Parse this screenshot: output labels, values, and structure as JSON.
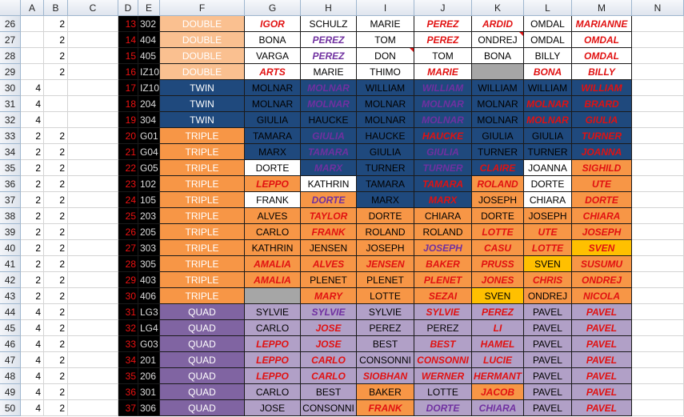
{
  "columns": [
    "A",
    "B",
    "C",
    "D",
    "E",
    "F",
    "G",
    "H",
    "I",
    "J",
    "K",
    "L",
    "M",
    "N"
  ],
  "colors": {
    "W": "#ffffff",
    "PD": "#fac090",
    "N": "#1f497d",
    "O": "#f79646",
    "P": "#8064a2",
    "LP": "#b1a0c7",
    "G": "#a6a6a6",
    "Y": "#ffc000",
    "BK": "#000000",
    "RED": "#ff0000",
    "PUR": "#7030a0",
    "BLK": "#000000",
    "WHT": "#ffffff",
    "OR": "#ffc000",
    "RD": "#e11111",
    "PP": "#7030a0"
  },
  "rows": [
    {
      "r": "26",
      "a": "",
      "b": "2",
      "d": "13",
      "e": "302",
      "f": "DOUBLE",
      "fc": "PD",
      "cells": [
        [
          "IGOR",
          "W",
          "RD",
          1
        ],
        [
          "SCHULZ",
          "W",
          "BK",
          0
        ],
        [
          "MARIE",
          "W",
          "BK",
          0
        ],
        [
          "PEREZ",
          "W",
          "RD",
          1
        ],
        [
          "ARDID",
          "W",
          "RD",
          1
        ],
        [
          "OMDAL",
          "W",
          "BK",
          0
        ],
        [
          "MARIANNE",
          "W",
          "RD",
          1
        ]
      ]
    },
    {
      "r": "27",
      "a": "",
      "b": "2",
      "d": "14",
      "e": "404",
      "f": "DOUBLE",
      "fc": "PD",
      "cells": [
        [
          "BONA",
          "W",
          "BK",
          0
        ],
        [
          "PEREZ",
          "W",
          "PP",
          1
        ],
        [
          "TOM",
          "W",
          "BK",
          0
        ],
        [
          "PEREZ",
          "W",
          "RD",
          1
        ],
        [
          "ONDREJ",
          "W",
          "BK",
          0,
          1
        ],
        [
          "OMDAL",
          "W",
          "BK",
          0
        ],
        [
          "OMDAL",
          "W",
          "RD",
          1
        ]
      ]
    },
    {
      "r": "28",
      "a": "",
      "b": "2",
      "d": "15",
      "e": "405",
      "f": "DOUBLE",
      "fc": "PD",
      "cells": [
        [
          "VARGA",
          "W",
          "BK",
          0
        ],
        [
          "PEREZ",
          "W",
          "PP",
          1
        ],
        [
          "DON",
          "W",
          "BK",
          0,
          1
        ],
        [
          "TOM",
          "W",
          "BK",
          0
        ],
        [
          "BONA",
          "W",
          "BK",
          0
        ],
        [
          "BILLY",
          "W",
          "BK",
          0
        ],
        [
          "OMDAL",
          "W",
          "RD",
          1
        ]
      ]
    },
    {
      "r": "29",
      "a": "",
      "b": "2",
      "d": "16",
      "e": "IZ10",
      "f": "DOUBLE",
      "fc": "PD",
      "cells": [
        [
          "ARTS",
          "W",
          "RD",
          1
        ],
        [
          "MARIE",
          "W",
          "BK",
          0
        ],
        [
          "THIMO",
          "W",
          "BK",
          0
        ],
        [
          "MARIE",
          "W",
          "RD",
          1
        ],
        [
          "",
          "G",
          "BK",
          0
        ],
        [
          "BONA",
          "W",
          "RD",
          1
        ],
        [
          "BILLY",
          "W",
          "RD",
          1
        ]
      ]
    },
    {
      "r": "30",
      "a": "4",
      "b": "",
      "d": "17",
      "e": "IZ10",
      "f": "TWIN",
      "fc": "N",
      "cells": [
        [
          "MOLNAR",
          "N",
          "BK",
          0
        ],
        [
          "MOLNAR",
          "N",
          "PP",
          1
        ],
        [
          "WILLIAM",
          "N",
          "BK",
          0
        ],
        [
          "WILLIAM",
          "N",
          "PP",
          1
        ],
        [
          "WILLIAM",
          "N",
          "BK",
          0
        ],
        [
          "WILLIAM",
          "N",
          "BK",
          0
        ],
        [
          "WILLIAM",
          "N",
          "RD",
          1
        ]
      ]
    },
    {
      "r": "31",
      "a": "4",
      "b": "",
      "d": "18",
      "e": "204",
      "f": "TWIN",
      "fc": "N",
      "cells": [
        [
          "MOLNAR",
          "N",
          "BK",
          0
        ],
        [
          "MOLNAR",
          "N",
          "PP",
          1
        ],
        [
          "MOLNAR",
          "N",
          "BK",
          0
        ],
        [
          "MOLNAR",
          "N",
          "PP",
          1
        ],
        [
          "MOLNAR",
          "N",
          "BK",
          0
        ],
        [
          "MOLNAR",
          "N",
          "RD",
          1
        ],
        [
          "BRARD",
          "N",
          "RD",
          1
        ]
      ]
    },
    {
      "r": "32",
      "a": "4",
      "b": "",
      "d": "19",
      "e": "304",
      "f": "TWIN",
      "fc": "N",
      "cells": [
        [
          "GIULIA",
          "N",
          "BK",
          0
        ],
        [
          "HAUCKE",
          "N",
          "BK",
          0
        ],
        [
          "MOLNAR",
          "N",
          "BK",
          0
        ],
        [
          "MOLNAR",
          "N",
          "PP",
          1
        ],
        [
          "MOLNAR",
          "N",
          "BK",
          0
        ],
        [
          "MOLNAR",
          "N",
          "RD",
          1
        ],
        [
          "GIULIA",
          "N",
          "RD",
          1
        ]
      ]
    },
    {
      "r": "33",
      "a": "2",
      "b": "2",
      "d": "20",
      "e": "G01",
      "f": "TRIPLE",
      "fc": "O",
      "cells": [
        [
          "TAMARA",
          "N",
          "BK",
          0
        ],
        [
          "GIULIA",
          "N",
          "PP",
          1
        ],
        [
          "HAUCKE",
          "N",
          "BK",
          0
        ],
        [
          "HAUCKE",
          "N",
          "RD",
          1
        ],
        [
          "GIULIA",
          "N",
          "BK",
          0
        ],
        [
          "GIULIA",
          "N",
          "BK",
          0
        ],
        [
          "TURNER",
          "N",
          "RD",
          1
        ]
      ]
    },
    {
      "r": "34",
      "a": "2",
      "b": "2",
      "d": "21",
      "e": "G04",
      "f": "TRIPLE",
      "fc": "O",
      "cells": [
        [
          "MARX",
          "N",
          "BK",
          0
        ],
        [
          "TAMARA",
          "N",
          "PP",
          1
        ],
        [
          "GIULIA",
          "N",
          "BK",
          0
        ],
        [
          "GIULIA",
          "N",
          "PP",
          1
        ],
        [
          "TURNER",
          "N",
          "BK",
          0
        ],
        [
          "TURNER",
          "N",
          "BK",
          0
        ],
        [
          "JOANNA",
          "N",
          "RD",
          1
        ]
      ]
    },
    {
      "r": "35",
      "a": "2",
      "b": "2",
      "d": "22",
      "e": "G05",
      "f": "TRIPLE",
      "fc": "O",
      "cells": [
        [
          "DORTE",
          "W",
          "BK",
          0
        ],
        [
          "MARX",
          "N",
          "PP",
          1
        ],
        [
          "TURNER",
          "N",
          "BK",
          0
        ],
        [
          "TURNER",
          "N",
          "PP",
          1
        ],
        [
          "CLAIRE",
          "N",
          "RD",
          1
        ],
        [
          "JOANNA",
          "W",
          "BK",
          0
        ],
        [
          "SIGHILD",
          "O",
          "RD",
          1
        ]
      ]
    },
    {
      "r": "36",
      "a": "2",
      "b": "2",
      "d": "23",
      "e": "102",
      "f": "TRIPLE",
      "fc": "O",
      "cells": [
        [
          "LEPPO",
          "O",
          "RD",
          1
        ],
        [
          "KATHRIN",
          "W",
          "BK",
          0
        ],
        [
          "TAMARA",
          "N",
          "BK",
          0
        ],
        [
          "TAMARA",
          "N",
          "RD",
          1
        ],
        [
          "ROLAND",
          "O",
          "RD",
          1
        ],
        [
          "DORTE",
          "W",
          "BK",
          0
        ],
        [
          "UTE",
          "O",
          "RD",
          1
        ]
      ]
    },
    {
      "r": "37",
      "a": "2",
      "b": "2",
      "d": "24",
      "e": "105",
      "f": "TRIPLE",
      "fc": "O",
      "cells": [
        [
          "FRANK",
          "W",
          "BK",
          0
        ],
        [
          "DORTE",
          "O",
          "PP",
          1
        ],
        [
          "MARX",
          "N",
          "BK",
          0
        ],
        [
          "MARX",
          "N",
          "RD",
          1
        ],
        [
          "JOSEPH",
          "O",
          "BK",
          0
        ],
        [
          "CHIARA",
          "W",
          "BK",
          0
        ],
        [
          "DORTE",
          "O",
          "RD",
          1
        ]
      ]
    },
    {
      "r": "38",
      "a": "2",
      "b": "2",
      "d": "25",
      "e": "203",
      "f": "TRIPLE",
      "fc": "O",
      "cells": [
        [
          "ALVES",
          "O",
          "BK",
          0
        ],
        [
          "TAYLOR",
          "O",
          "RD",
          1
        ],
        [
          "DORTE",
          "O",
          "BK",
          0
        ],
        [
          "CHIARA",
          "O",
          "BK",
          0
        ],
        [
          "DORTE",
          "O",
          "BK",
          0
        ],
        [
          "JOSEPH",
          "O",
          "BK",
          0
        ],
        [
          "CHIARA",
          "O",
          "RD",
          1
        ]
      ]
    },
    {
      "r": "39",
      "a": "2",
      "b": "2",
      "d": "26",
      "e": "205",
      "f": "TRIPLE",
      "fc": "O",
      "cells": [
        [
          "CARLO",
          "O",
          "BK",
          0
        ],
        [
          "FRANK",
          "O",
          "RD",
          1
        ],
        [
          "ROLAND",
          "O",
          "BK",
          0
        ],
        [
          "ROLAND",
          "O",
          "BK",
          0
        ],
        [
          "LOTTE",
          "O",
          "RD",
          1
        ],
        [
          "UTE",
          "O",
          "RD",
          1
        ],
        [
          "JOSEPH",
          "O",
          "RD",
          1
        ]
      ]
    },
    {
      "r": "40",
      "a": "2",
      "b": "2",
      "d": "27",
      "e": "303",
      "f": "TRIPLE",
      "fc": "O",
      "cells": [
        [
          "KATHRIN",
          "O",
          "BK",
          0
        ],
        [
          "JENSEN",
          "O",
          "BK",
          0
        ],
        [
          "JOSEPH",
          "O",
          "BK",
          0
        ],
        [
          "JOSEPH",
          "O",
          "PP",
          1
        ],
        [
          "CASU",
          "O",
          "RD",
          1
        ],
        [
          "LOTTE",
          "O",
          "RD",
          1
        ],
        [
          "SVEN",
          "Y",
          "RD",
          1
        ]
      ]
    },
    {
      "r": "41",
      "a": "2",
      "b": "2",
      "d": "28",
      "e": "305",
      "f": "TRIPLE",
      "fc": "O",
      "cells": [
        [
          "AMALIA",
          "O",
          "RD",
          1
        ],
        [
          "ALVES",
          "O",
          "RD",
          1
        ],
        [
          "JENSEN",
          "O",
          "RD",
          1
        ],
        [
          "BAKER",
          "O",
          "RD",
          1
        ],
        [
          "PRUSS",
          "O",
          "RD",
          1
        ],
        [
          "SVEN",
          "Y",
          "BK",
          0
        ],
        [
          "SUSUMU",
          "O",
          "RD",
          1
        ]
      ]
    },
    {
      "r": "42",
      "a": "2",
      "b": "2",
      "d": "29",
      "e": "403",
      "f": "TRIPLE",
      "fc": "O",
      "cells": [
        [
          "AMALIA",
          "O",
          "RD",
          1
        ],
        [
          "PLENET",
          "O",
          "BK",
          0
        ],
        [
          "PLENET",
          "O",
          "BK",
          0
        ],
        [
          "PLENET",
          "O",
          "RD",
          1
        ],
        [
          "JONES",
          "O",
          "RD",
          1
        ],
        [
          "CHRIS",
          "O",
          "RD",
          1
        ],
        [
          "ONDREJ",
          "O",
          "RD",
          1
        ]
      ]
    },
    {
      "r": "43",
      "a": "2",
      "b": "2",
      "d": "30",
      "e": "406",
      "f": "TRIPLE",
      "fc": "O",
      "cells": [
        [
          "",
          "G",
          "BK",
          0
        ],
        [
          "MARY",
          "O",
          "RD",
          1
        ],
        [
          "LOTTE",
          "O",
          "BK",
          0
        ],
        [
          "SEZAI",
          "O",
          "RD",
          1
        ],
        [
          "SVEN",
          "Y",
          "BK",
          0
        ],
        [
          "ONDREJ",
          "O",
          "BK",
          0
        ],
        [
          "NICOLA",
          "O",
          "RD",
          1
        ]
      ]
    },
    {
      "r": "44",
      "a": "4",
      "b": "2",
      "d": "31",
      "e": "LG3",
      "f": "QUAD",
      "fc": "P",
      "cells": [
        [
          "SYLVIE",
          "LP",
          "BK",
          0
        ],
        [
          "SYLVIE",
          "LP",
          "PP",
          1
        ],
        [
          "SYLVIE",
          "LP",
          "BK",
          0
        ],
        [
          "SYLVIE",
          "LP",
          "RD",
          1
        ],
        [
          "PEREZ",
          "LP",
          "RD",
          1
        ],
        [
          "PAVEL",
          "LP",
          "BK",
          0
        ],
        [
          "PAVEL",
          "LP",
          "RD",
          1
        ]
      ]
    },
    {
      "r": "45",
      "a": "4",
      "b": "2",
      "d": "32",
      "e": "LG4",
      "f": "QUAD",
      "fc": "P",
      "cells": [
        [
          "CARLO",
          "LP",
          "BK",
          0
        ],
        [
          "JOSE",
          "LP",
          "RD",
          1
        ],
        [
          "PEREZ",
          "LP",
          "BK",
          0
        ],
        [
          "PEREZ",
          "LP",
          "BK",
          0
        ],
        [
          "LI",
          "LP",
          "RD",
          1
        ],
        [
          "PAVEL",
          "LP",
          "BK",
          0
        ],
        [
          "PAVEL",
          "LP",
          "RD",
          1
        ]
      ]
    },
    {
      "r": "46",
      "a": "4",
      "b": "2",
      "d": "33",
      "e": "G03",
      "f": "QUAD",
      "fc": "P",
      "cells": [
        [
          "LEPPO",
          "LP",
          "RD",
          1
        ],
        [
          "JOSE",
          "LP",
          "RD",
          1
        ],
        [
          "BEST",
          "LP",
          "BK",
          0
        ],
        [
          "BEST",
          "LP",
          "RD",
          1
        ],
        [
          "HAMEL",
          "LP",
          "RD",
          1
        ],
        [
          "PAVEL",
          "LP",
          "BK",
          0
        ],
        [
          "PAVEL",
          "LP",
          "RD",
          1
        ]
      ]
    },
    {
      "r": "47",
      "a": "4",
      "b": "2",
      "d": "34",
      "e": "201",
      "f": "QUAD",
      "fc": "P",
      "cells": [
        [
          "LEPPO",
          "LP",
          "RD",
          1
        ],
        [
          "CARLO",
          "LP",
          "RD",
          1
        ],
        [
          "CONSONNI",
          "LP",
          "BK",
          0
        ],
        [
          "CONSONNI",
          "LP",
          "RD",
          1
        ],
        [
          "LUCIE",
          "LP",
          "RD",
          1
        ],
        [
          "PAVEL",
          "LP",
          "BK",
          0
        ],
        [
          "PAVEL",
          "LP",
          "RD",
          1
        ]
      ]
    },
    {
      "r": "48",
      "a": "4",
      "b": "2",
      "d": "35",
      "e": "206",
      "f": "QUAD",
      "fc": "P",
      "cells": [
        [
          "LEPPO",
          "LP",
          "RD",
          1
        ],
        [
          "CARLO",
          "LP",
          "RD",
          1
        ],
        [
          "SIOBHAN",
          "LP",
          "RD",
          1
        ],
        [
          "WERNER",
          "LP",
          "RD",
          1
        ],
        [
          "HERMANT",
          "LP",
          "RD",
          1
        ],
        [
          "PAVEL",
          "LP",
          "BK",
          0
        ],
        [
          "PAVEL",
          "LP",
          "RD",
          1
        ]
      ]
    },
    {
      "r": "49",
      "a": "4",
      "b": "2",
      "d": "36",
      "e": "301",
      "f": "QUAD",
      "fc": "P",
      "cells": [
        [
          "CARLO",
          "LP",
          "BK",
          0
        ],
        [
          "BEST",
          "LP",
          "BK",
          0
        ],
        [
          "BAKER",
          "O",
          "BK",
          0
        ],
        [
          "LOTTE",
          "LP",
          "BK",
          0
        ],
        [
          "JACOB",
          "O",
          "RD",
          1
        ],
        [
          "PAVEL",
          "LP",
          "BK",
          0
        ],
        [
          "PAVEL",
          "LP",
          "RD",
          1
        ]
      ]
    },
    {
      "r": "50",
      "a": "4",
      "b": "2",
      "d": "37",
      "e": "306",
      "f": "QUAD",
      "fc": "P",
      "cells": [
        [
          "JOSE",
          "LP",
          "BK",
          0
        ],
        [
          "CONSONNI",
          "LP",
          "BK",
          0
        ],
        [
          "FRANK",
          "O",
          "RD",
          1
        ],
        [
          "DORTE",
          "LP",
          "PP",
          1
        ],
        [
          "CHIARA",
          "LP",
          "PP",
          1
        ],
        [
          "PAVEL",
          "LP",
          "BK",
          0
        ],
        [
          "PAVEL",
          "LP",
          "RD",
          1
        ]
      ]
    }
  ]
}
